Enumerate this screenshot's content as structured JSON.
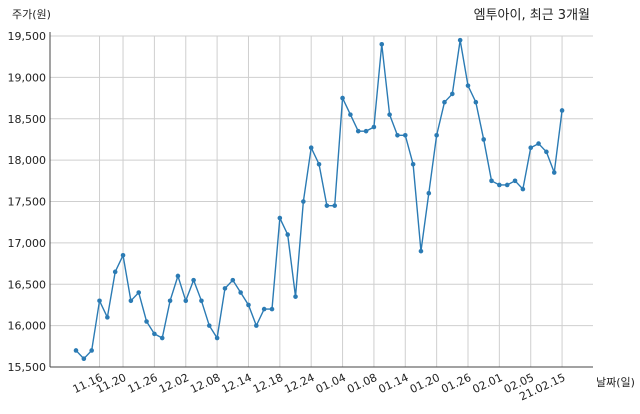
{
  "chart_data": {
    "type": "line",
    "title": "엠투아이, 최근 3개월",
    "ylabel": "주가(원)",
    "xlabel": "날짜(일)",
    "ylim": [
      15500,
      19500
    ],
    "y_ticks": [
      15500,
      16000,
      16500,
      17000,
      17500,
      18000,
      18500,
      19000,
      19500
    ],
    "y_tick_labels": [
      "15,500",
      "16,000",
      "16,500",
      "17,000",
      "17,500",
      "18,000",
      "18,500",
      "19,000",
      "19,500"
    ],
    "x_tick_labels": [
      {
        "label": "11.16",
        "index": 3
      },
      {
        "label": "11.20",
        "index": 6
      },
      {
        "label": "11.26",
        "index": 10
      },
      {
        "label": "12.02",
        "index": 14
      },
      {
        "label": "12.08",
        "index": 18
      },
      {
        "label": "12.14",
        "index": 22
      },
      {
        "label": "12.18",
        "index": 26
      },
      {
        "label": "12.24",
        "index": 30
      },
      {
        "label": "01.04",
        "index": 34
      },
      {
        "label": "01.08",
        "index": 38
      },
      {
        "label": "01.14",
        "index": 42
      },
      {
        "label": "01.20",
        "index": 46
      },
      {
        "label": "01.26",
        "index": 50
      },
      {
        "label": "02.01",
        "index": 54
      },
      {
        "label": "02.05",
        "index": 58
      },
      {
        "label": "21.02.15",
        "index": 62
      }
    ],
    "grid": true,
    "series": [
      {
        "color": "#2b7bb4",
        "values": [
          15700,
          15600,
          15700,
          16300,
          16100,
          16650,
          16850,
          16300,
          16400,
          16050,
          15900,
          15850,
          16300,
          16600,
          16300,
          16550,
          16300,
          16000,
          15850,
          16450,
          16550,
          16400,
          16250,
          16000,
          16200,
          16200,
          17300,
          17100,
          16350,
          17500,
          18150,
          17950,
          17450,
          17450,
          18750,
          18550,
          18350,
          18350,
          18400,
          19400,
          18550,
          18300,
          18300,
          17950,
          16900,
          17600,
          18300,
          18700,
          18800,
          19450,
          18900,
          18700,
          18250,
          17750,
          17700,
          17700,
          17750,
          17650,
          18150,
          18200,
          18100,
          17850,
          18600
        ]
      }
    ]
  }
}
